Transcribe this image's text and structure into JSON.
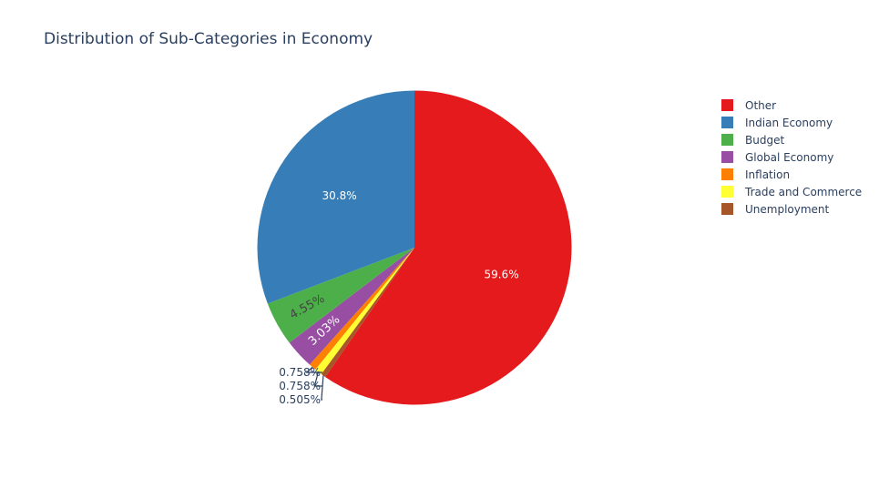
{
  "chart_data": {
    "type": "pie",
    "title": "Distribution of Sub-Categories in Economy",
    "slices": [
      {
        "label": "Other",
        "value": 59.6,
        "text": "59.6%",
        "color": "#e41a1c",
        "text_color": "#ffffff"
      },
      {
        "label": "Unemployment",
        "value": 0.505,
        "text": "0.505%",
        "color": "#a65628",
        "text_color": "#2a3f5f"
      },
      {
        "label": "Trade and Commerce",
        "value": 0.758,
        "text": "0.758%",
        "color": "#ffff33",
        "text_color": "#2a3f5f"
      },
      {
        "label": "Inflation",
        "value": 0.758,
        "text": "0.758%",
        "color": "#ff7f00",
        "text_color": "#2a3f5f"
      },
      {
        "label": "Global Economy",
        "value": 3.03,
        "text": "3.03%",
        "color": "#984ea3",
        "text_color": "#ffffff"
      },
      {
        "label": "Budget",
        "value": 4.55,
        "text": "4.55%",
        "color": "#4daf4a",
        "text_color": "#444444"
      },
      {
        "label": "Indian Economy",
        "value": 30.8,
        "text": "30.8%",
        "color": "#377eb8",
        "text_color": "#ffffff"
      }
    ],
    "legend": {
      "position": "right",
      "items": [
        {
          "label": "Other",
          "color": "#e41a1c"
        },
        {
          "label": "Indian Economy",
          "color": "#377eb8"
        },
        {
          "label": "Budget",
          "color": "#4daf4a"
        },
        {
          "label": "Global Economy",
          "color": "#984ea3"
        },
        {
          "label": "Inflation",
          "color": "#ff7f00"
        },
        {
          "label": "Trade and Commerce",
          "color": "#ffff33"
        },
        {
          "label": "Unemployment",
          "color": "#a65628"
        }
      ]
    }
  }
}
